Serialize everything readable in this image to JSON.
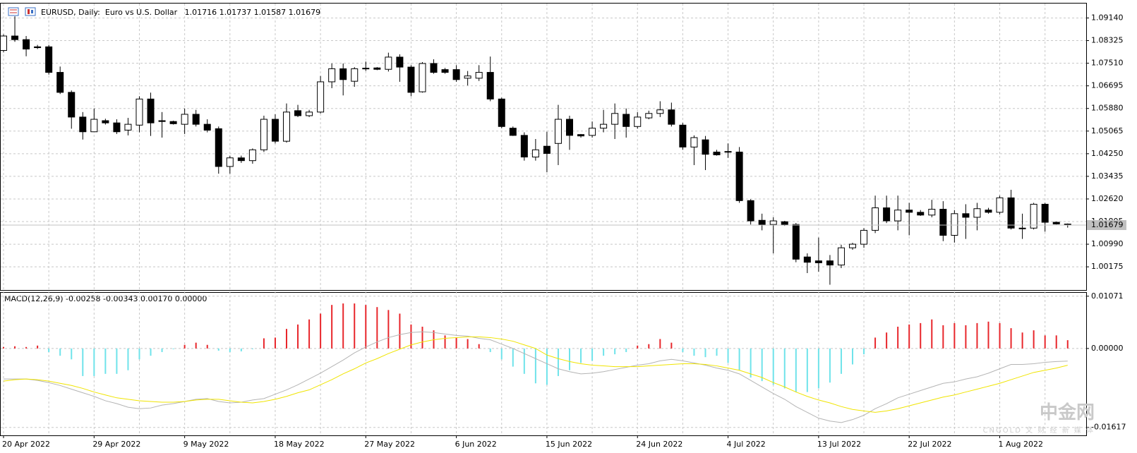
{
  "chart_data": [
    {
      "type": "candlestick",
      "title": "EURUSD, Daily:  Euro vs U.S. Dollar",
      "categories": [
        "20 Apr 2022",
        null,
        null,
        null,
        null,
        null,
        null,
        null,
        "29 Apr 2022",
        null,
        null,
        null,
        null,
        null,
        null,
        null,
        "9 May 2022",
        null,
        null,
        null,
        null,
        null,
        null,
        null,
        "18 May 2022",
        null,
        null,
        null,
        null,
        null,
        null,
        null,
        "27 May 2022",
        null,
        null,
        null,
        null,
        null,
        null,
        null,
        "6 Jun 2022",
        null,
        null,
        null,
        null,
        null,
        null,
        null,
        "15 Jun 2022",
        null,
        null,
        null,
        null,
        null,
        null,
        null,
        "24 Jun 2022",
        null,
        null,
        null,
        null,
        null,
        null,
        null,
        "4 Jul 2022",
        null,
        null,
        null,
        null,
        null,
        null,
        null,
        "13 Jul 2022",
        null,
        null,
        null,
        null,
        null,
        null,
        null,
        "22 Jul 2022",
        null,
        null,
        null,
        null,
        null,
        null,
        null,
        "1 Aug 2022",
        null,
        null,
        null,
        null,
        null,
        null
      ],
      "open": [
        1.0797,
        1.0849,
        1.0836,
        1.081,
        1.081,
        1.0718,
        1.0646,
        1.0557,
        1.0504,
        1.0544,
        1.0536,
        1.051,
        1.0528,
        1.0622,
        1.0544,
        1.0541,
        1.0531,
        1.0567,
        1.0531,
        1.0515,
        1.0379,
        1.041,
        1.04,
        1.0439,
        1.0549,
        1.047,
        1.058,
        1.0562,
        1.0575,
        1.0684,
        1.0731,
        1.0686,
        1.0731,
        1.0734,
        1.0729,
        1.0773,
        1.0737,
        1.0648,
        1.075,
        1.0728,
        1.0728,
        1.0697,
        1.0697,
        1.0718,
        1.0622,
        1.0517,
        1.0491,
        1.0413,
        1.0452,
        1.0462,
        1.0549,
        1.0494,
        1.0491,
        1.0517,
        1.0531,
        1.0567,
        1.0523,
        1.0554,
        1.057,
        1.0583,
        1.0528,
        1.0449,
        1.0475,
        1.0431,
        1.0431,
        1.0431,
        1.0256,
        1.0185,
        1.017,
        1.018,
        1.017,
        1.0053,
        1.0039,
        1.0039,
        1.0024,
        1.0086,
        1.0099,
        1.0149,
        1.023,
        1.0183,
        1.0222,
        1.0214,
        1.0204,
        1.0225,
        1.0131,
        1.0209,
        1.0196,
        1.0222,
        1.0214,
        1.0266,
        1.0157,
        1.0157,
        1.0243,
        1.0178,
        1.01716
      ],
      "high": [
        1.0855,
        1.092,
        1.0849,
        1.0817,
        1.0817,
        1.0739,
        1.0653,
        1.0575,
        1.0588,
        1.0551,
        1.0549,
        1.0554,
        1.0632,
        1.0645,
        1.0575,
        1.0544,
        1.0588,
        1.0583,
        1.0549,
        1.0523,
        1.0418,
        1.0418,
        1.0444,
        1.0562,
        1.0567,
        1.0606,
        1.0601,
        1.0583,
        1.0705,
        1.075,
        1.075,
        1.0737,
        1.0757,
        1.0737,
        1.0789,
        1.0783,
        1.0744,
        1.0755,
        1.0765,
        1.0734,
        1.0744,
        1.0723,
        1.0744,
        1.0775,
        1.0627,
        1.0523,
        1.0502,
        1.0478,
        1.0504,
        1.0601,
        1.0562,
        1.0496,
        1.0541,
        1.0583,
        1.0606,
        1.0588,
        1.0575,
        1.058,
        1.0614,
        1.0609,
        1.0536,
        1.0491,
        1.0489,
        1.0439,
        1.0462,
        1.0449,
        1.0261,
        1.0209,
        1.0196,
        1.0183,
        1.0175,
        1.0066,
        1.0123,
        1.006,
        1.0097,
        1.0104,
        1.0157,
        1.0274,
        1.0274,
        1.0274,
        1.0248,
        1.0222,
        1.0259,
        1.0254,
        1.0222,
        1.0243,
        1.0248,
        1.023,
        1.0274,
        1.0295,
        1.0209,
        1.0248,
        1.0248,
        1.018,
        1.01737
      ],
      "low": [
        1.079,
        1.0828,
        1.0776,
        1.0802,
        1.071,
        1.064,
        1.0515,
        1.0476,
        1.0504,
        1.053,
        1.0496,
        1.0491,
        1.0502,
        1.0489,
        1.0483,
        1.053,
        1.0496,
        1.0523,
        1.0502,
        1.0353,
        1.0353,
        1.0392,
        1.0389,
        1.0431,
        1.0462,
        1.0465,
        1.0557,
        1.0557,
        1.057,
        1.0661,
        1.0635,
        1.0666,
        1.0723,
        1.0726,
        1.0721,
        1.0684,
        1.0632,
        1.0645,
        1.0713,
        1.0713,
        1.0684,
        1.0671,
        1.0687,
        1.0614,
        1.0517,
        1.0489,
        1.04,
        1.04,
        1.0358,
        1.0384,
        1.0439,
        1.0483,
        1.0483,
        1.0502,
        1.0478,
        1.0483,
        1.0515,
        1.0549,
        1.0557,
        1.0523,
        1.0439,
        1.0384,
        1.0366,
        1.0418,
        1.041,
        1.0248,
        1.017,
        1.0149,
        1.0066,
        1.0165,
        1.0034,
        0.9995,
        1.0,
        0.9953,
        1.0013,
        1.0079,
        1.0086,
        1.0139,
        1.0175,
        1.0149,
        1.0131,
        1.0201,
        1.0196,
        1.011,
        1.0105,
        1.0118,
        1.0149,
        1.0209,
        1.0206,
        1.0152,
        1.0118,
        1.0152,
        1.0144,
        1.017,
        1.01587
      ],
      "close": [
        1.0849,
        1.0836,
        1.0802,
        1.0807,
        1.0718,
        1.0646,
        1.0557,
        1.0504,
        1.0549,
        1.0536,
        1.0504,
        1.0531,
        1.0622,
        1.0536,
        1.0541,
        1.0533,
        1.0567,
        1.0531,
        1.051,
        1.0379,
        1.041,
        1.04,
        1.0439,
        1.0549,
        1.047,
        1.0575,
        1.0562,
        1.0575,
        1.0684,
        1.0731,
        1.0692,
        1.0731,
        1.0733,
        1.0729,
        1.0773,
        1.0737,
        1.0646,
        1.075,
        1.0718,
        1.0718,
        1.0692,
        1.0705,
        1.0718,
        1.0622,
        1.0523,
        1.0491,
        1.0413,
        1.0439,
        1.0426,
        1.0549,
        1.0491,
        1.0489,
        1.0517,
        1.0531,
        1.057,
        1.0523,
        1.0557,
        1.057,
        1.0583,
        1.0531,
        1.0449,
        1.0483,
        1.0423,
        1.0421,
        1.0433,
        1.0256,
        1.0183,
        1.017,
        1.0183,
        1.017,
        1.0045,
        1.0034,
        1.0032,
        1.0024,
        1.0086,
        1.0099,
        1.0149,
        1.023,
        1.0183,
        1.0222,
        1.0214,
        1.0204,
        1.0225,
        1.0131,
        1.0209,
        1.0196,
        1.0227,
        1.0214,
        1.0266,
        1.0157,
        1.0157,
        1.0243,
        1.0178,
        1.0172,
        1.01679
      ],
      "up_color": "#ffffff",
      "down_color": "#000000",
      "wick_color": "#000000",
      "ylim": [
        0.9934,
        1.0966
      ],
      "yticks": [
        {
          "value": 1.0914,
          "label": "1.09140"
        },
        {
          "value": 1.08325,
          "label": "1.08325"
        },
        {
          "value": 1.0751,
          "label": "1.07510"
        },
        {
          "value": 1.06695,
          "label": "1.06695"
        },
        {
          "value": 1.0588,
          "label": "1.05880"
        },
        {
          "value": 1.05065,
          "label": "1.05065"
        },
        {
          "value": 1.0425,
          "label": "1.04250"
        },
        {
          "value": 1.03435,
          "label": "1.03435"
        },
        {
          "value": 1.0262,
          "label": "1.02620"
        },
        {
          "value": 1.01805,
          "label": "1.01805"
        },
        {
          "value": 1.0099,
          "label": "1.00990"
        },
        {
          "value": 1.00175,
          "label": "1.00175"
        }
      ],
      "grid": true,
      "last_price_line": true
    },
    {
      "type": "macd",
      "title": "MACD(12,26,9) -0.00258 -0.00343 0.00170 0.00000",
      "series": [
        {
          "style": "histogram",
          "color": "#e8262b",
          "negative_color": "#6fe3ea",
          "values": [
            0.0003,
            0.00045,
            0.0003,
            0.00059,
            -0.00074,
            -0.00149,
            -0.00223,
            -0.00565,
            -0.00565,
            -0.0052,
            -0.0052,
            -0.00446,
            -0.00223,
            -0.00149,
            -0.00074,
            -0.00015,
            0.00074,
            0.00119,
            0.00074,
            -0.00045,
            -0.00074,
            -0.00059,
            -0.00015,
            0.00208,
            0.00223,
            0.00401,
            0.00491,
            0.00595,
            0.00714,
            0.00892,
            0.00922,
            0.00922,
            0.00892,
            0.00848,
            0.00788,
            0.00714,
            0.00491,
            0.00446,
            0.00372,
            0.00268,
            0.00223,
            0.00193,
            0.00089,
            -0.00074,
            -0.00223,
            -0.00372,
            -0.0052,
            -0.00714,
            -0.00744,
            -0.00565,
            -0.00446,
            -0.00297,
            -0.00253,
            -0.00149,
            -0.00119,
            -0.00074,
            0.00059,
            0.00089,
            0.00193,
            0.00119,
            -0.00074,
            -0.00149,
            -0.00178,
            -0.00149,
            -0.00297,
            -0.00446,
            -0.00595,
            -0.00669,
            -0.00744,
            -0.00818,
            -0.00892,
            -0.00892,
            -0.00818,
            -0.00699,
            -0.0052,
            -0.00327,
            -0.00119,
            0.00223,
            0.00327,
            0.00446,
            0.00491,
            0.0052,
            0.00595,
            0.00476,
            0.0052,
            0.00476,
            0.0052,
            0.0055,
            0.0052,
            0.00416,
            0.00327,
            0.00372,
            0.00268,
            0.00268,
            0.0017
          ]
        },
        {
          "style": "line",
          "color": "#b4b4b4",
          "values": [
            -0.00625,
            -0.00625,
            -0.00625,
            -0.00654,
            -0.00699,
            -0.00758,
            -0.00833,
            -0.00907,
            -0.00981,
            -0.01071,
            -0.0113,
            -0.01204,
            -0.01234,
            -0.01219,
            -0.0116,
            -0.0113,
            -0.01086,
            -0.01041,
            -0.01026,
            -0.01086,
            -0.01115,
            -0.011,
            -0.01056,
            -0.01026,
            -0.00937,
            -0.00848,
            -0.00744,
            -0.00625,
            -0.00506,
            -0.00372,
            -0.00238,
            -0.00089,
            0.0003,
            0.00134,
            0.00223,
            0.00283,
            0.00327,
            0.00342,
            0.00327,
            0.00297,
            0.00268,
            0.00253,
            0.00208,
            0.00178,
            0.00089,
            0,
            -0.00104,
            -0.00208,
            -0.00312,
            -0.00416,
            -0.00476,
            -0.0052,
            -0.00506,
            -0.00476,
            -0.00431,
            -0.00387,
            -0.00342,
            -0.00312,
            -0.00253,
            -0.00223,
            -0.00253,
            -0.00297,
            -0.00342,
            -0.00401,
            -0.00446,
            -0.0052,
            -0.00654,
            -0.00788,
            -0.00922,
            -0.01041,
            -0.0119,
            -0.01309,
            -0.01428,
            -0.01487,
            -0.01517,
            -0.01457,
            -0.01368,
            -0.01234,
            -0.0113,
            -0.01011,
            -0.00937,
            -0.00862,
            -0.00788,
            -0.00714,
            -0.00684,
            -0.00625,
            -0.0058,
            -0.00506,
            -0.00416,
            -0.00327,
            -0.00327,
            -0.00312,
            -0.00283,
            -0.00268,
            -0.00258
          ]
        },
        {
          "style": "line",
          "color": "#f0e400",
          "values": [
            -0.00669,
            -0.00639,
            -0.00625,
            -0.00639,
            -0.00669,
            -0.00714,
            -0.00758,
            -0.00818,
            -0.00892,
            -0.00952,
            -0.01011,
            -0.01041,
            -0.01071,
            -0.01086,
            -0.011,
            -0.011,
            -0.01086,
            -0.01056,
            -0.01041,
            -0.01041,
            -0.01071,
            -0.011,
            -0.01115,
            -0.01086,
            -0.01041,
            -0.00981,
            -0.00907,
            -0.00848,
            -0.00744,
            -0.00639,
            -0.0052,
            -0.00416,
            -0.00297,
            -0.00208,
            -0.00104,
            -0.00015,
            0.00074,
            0.00134,
            0.00178,
            0.00208,
            0.00223,
            0.00238,
            0.00238,
            0.00223,
            0.00193,
            0.00149,
            0.00074,
            0,
            -0.00134,
            -0.00208,
            -0.00268,
            -0.00312,
            -0.00342,
            -0.00357,
            -0.00372,
            -0.00372,
            -0.00372,
            -0.00357,
            -0.00342,
            -0.00327,
            -0.00312,
            -0.00312,
            -0.00327,
            -0.00357,
            -0.00401,
            -0.00446,
            -0.0052,
            -0.00595,
            -0.00699,
            -0.00788,
            -0.00892,
            -0.00981,
            -0.01056,
            -0.01115,
            -0.0119,
            -0.01249,
            -0.01279,
            -0.01309,
            -0.01279,
            -0.01234,
            -0.01175,
            -0.01115,
            -0.01056,
            -0.00996,
            -0.00952,
            -0.00892,
            -0.00833,
            -0.00773,
            -0.00714,
            -0.00639,
            -0.00565,
            -0.00491,
            -0.00446,
            -0.00401,
            -0.00343
          ]
        }
      ],
      "ylim": [
        -0.0178,
        0.0114
      ],
      "yticks": [
        0.01071,
        {
          "value": 0,
          "label": "0.00000"
        },
        -0.01617
      ]
    }
  ],
  "watermark": {
    "title": "中金网",
    "subtitle": "CNGOLD 文 财 经 新 媒 体"
  }
}
